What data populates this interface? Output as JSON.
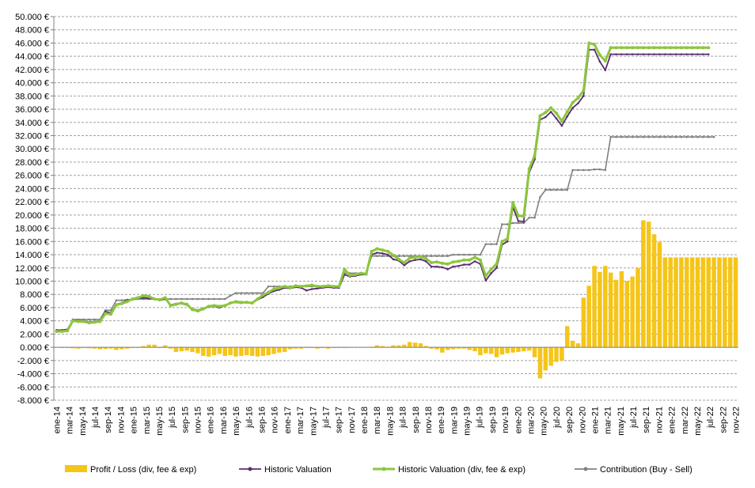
{
  "chart_data": {
    "type": "bar+line",
    "title": "",
    "xlabel": "",
    "ylabel": "",
    "ylim": [
      -8000,
      50000
    ],
    "y_tick_step": 2000,
    "y_tick_suffix": " €",
    "grid": true,
    "legend_position": "bottom",
    "x_tick_labels": [
      "ene-14",
      "mar-14",
      "may-14",
      "jul-14",
      "sep-14",
      "nov-14",
      "ene-15",
      "mar-15",
      "may-15",
      "jul-15",
      "sep-15",
      "nov-15",
      "ene-16",
      "mar-16",
      "may-16",
      "jul-16",
      "sep-16",
      "nov-16",
      "ene-17",
      "mar-17",
      "may-17",
      "jul-17",
      "sep-17",
      "nov-17",
      "ene-18",
      "mar-18",
      "may-18",
      "jul-18",
      "sep-18",
      "nov-18",
      "ene-19",
      "mar-19",
      "may-19",
      "jul-19",
      "sep-19",
      "nov-19",
      "ene-20",
      "mar-20",
      "may-20",
      "jul-20",
      "sep-20",
      "nov-20",
      "ene-21",
      "mar-21",
      "may-21",
      "jul-21",
      "sep-21",
      "nov-21",
      "ene-22",
      "mar-22",
      "may-22",
      "jul-22",
      "sep-22",
      "nov-22"
    ],
    "series": [
      {
        "name": "Profit / Loss (div, fee & exp)",
        "kind": "bar",
        "color": "#f5c518",
        "values": [
          0,
          -100,
          -100,
          -150,
          -200,
          -100,
          -150,
          -200,
          -300,
          -250,
          -200,
          -400,
          -300,
          -200,
          -100,
          -100,
          200,
          400,
          400,
          -100,
          300,
          -200,
          -700,
          -600,
          -500,
          -700,
          -900,
          -1300,
          -1400,
          -1200,
          -1000,
          -1300,
          -1200,
          -1400,
          -1300,
          -1200,
          -1300,
          -1400,
          -1300,
          -1200,
          -1000,
          -800,
          -700,
          -300,
          -200,
          -200,
          -100,
          -100,
          -200,
          -100,
          -200,
          -100,
          -100,
          -100,
          0,
          0,
          0,
          0,
          100,
          300,
          200,
          100,
          300,
          300,
          400,
          800,
          700,
          600,
          200,
          -200,
          -300,
          -800,
          -400,
          -300,
          -200,
          -200,
          -400,
          -600,
          -1200,
          -900,
          -1000,
          -1500,
          -1100,
          -900,
          -800,
          -700,
          -600,
          -500,
          -1500,
          -4700,
          -3500,
          -2800,
          -2200,
          -2000,
          3200,
          1000,
          600,
          7500,
          9300,
          12300,
          11400,
          12300,
          11300,
          10200,
          11500,
          10000,
          10700,
          12000,
          19200,
          19000,
          17100,
          15900,
          13600,
          13600,
          13600,
          13600,
          13600,
          13600,
          13600,
          13600,
          13600,
          13600,
          13600,
          13600,
          13600,
          13600
        ]
      },
      {
        "name": "Historic Valuation",
        "kind": "line",
        "color": "#5b2d6e",
        "values": [
          2600,
          2600,
          2700,
          4100,
          4000,
          4000,
          3800,
          3900,
          4000,
          5400,
          5200,
          6500,
          6700,
          7100,
          7300,
          7400,
          7500,
          7400,
          7300,
          7100,
          7300,
          6400,
          6600,
          6600,
          6400,
          5800,
          5600,
          5900,
          6100,
          6200,
          6000,
          6300,
          6700,
          6800,
          6700,
          6800,
          6700,
          7200,
          7600,
          8100,
          8500,
          8700,
          9000,
          8900,
          9100,
          9000,
          8600,
          8800,
          8900,
          9000,
          9100,
          9000,
          9000,
          11000,
          10700,
          10800,
          11000,
          11000,
          14000,
          14300,
          14200,
          14000,
          13300,
          13100,
          12400,
          13000,
          13200,
          13300,
          13000,
          12200,
          12200,
          12100,
          11800,
          12200,
          12300,
          12500,
          12500,
          13000,
          12600,
          10100,
          11200,
          12000,
          15500,
          16000,
          21200,
          19100,
          19000,
          26400,
          28400,
          34400,
          34800,
          35600,
          34600,
          33500,
          34900,
          36200,
          36900,
          38000,
          45000,
          45000,
          43200,
          41900,
          44300,
          44300,
          44300,
          44300,
          44300,
          44300,
          44300,
          44300,
          44300,
          44300,
          44300,
          44300,
          44300,
          44300,
          44300,
          44300,
          44300,
          44300,
          44300
        ]
      },
      {
        "name": "Historic Valuation  (div, fee & exp)",
        "kind": "line",
        "color": "#8cc63e",
        "values": [
          2400,
          2400,
          2500,
          4000,
          3900,
          3900,
          3700,
          3800,
          3900,
          5100,
          5000,
          6400,
          6600,
          6900,
          7300,
          7500,
          7800,
          7700,
          7300,
          7200,
          7500,
          6300,
          6500,
          6700,
          6500,
          5700,
          5500,
          5800,
          6200,
          6300,
          6200,
          6300,
          6700,
          6900,
          6800,
          6800,
          6700,
          7300,
          7900,
          8300,
          8800,
          9000,
          9200,
          9000,
          9300,
          9200,
          9300,
          9400,
          9200,
          9200,
          9300,
          9200,
          9200,
          11800,
          10900,
          11000,
          11200,
          11100,
          14500,
          14900,
          14700,
          14500,
          13900,
          13300,
          12800,
          13500,
          13600,
          13700,
          13400,
          12800,
          12900,
          12700,
          12600,
          12900,
          13000,
          13200,
          13200,
          13600,
          13200,
          10800,
          11800,
          12600,
          16000,
          16400,
          21900,
          19900,
          19800,
          27000,
          29000,
          35000,
          35500,
          36200,
          35400,
          34200,
          35600,
          37000,
          37700,
          38800,
          46000,
          45800,
          44200,
          43300,
          45300,
          45300,
          45300,
          45300,
          45300,
          45300,
          45300,
          45300,
          45300,
          45300,
          45300,
          45300,
          45300,
          45300,
          45300,
          45300,
          45300,
          45300,
          45300
        ]
      },
      {
        "name": "Contribution (Buy - Sell)",
        "kind": "line",
        "color": "#808080",
        "values": [
          2600,
          2600,
          2600,
          4200,
          4200,
          4200,
          4200,
          4200,
          4200,
          5600,
          5600,
          7100,
          7100,
          7200,
          7200,
          7300,
          7300,
          7300,
          7300,
          7300,
          7300,
          7300,
          7300,
          7300,
          7300,
          7300,
          7300,
          7300,
          7300,
          7300,
          7300,
          7300,
          7800,
          8200,
          8200,
          8200,
          8200,
          8200,
          8200,
          9200,
          9200,
          9200,
          9200,
          9200,
          9200,
          9200,
          9200,
          9200,
          9200,
          9200,
          9200,
          9200,
          9200,
          11200,
          11200,
          11200,
          11200,
          11200,
          13800,
          13800,
          13800,
          13800,
          13800,
          13800,
          13800,
          13800,
          13800,
          13800,
          13800,
          13800,
          13800,
          13800,
          13800,
          14000,
          14000,
          14000,
          14000,
          14000,
          14000,
          15600,
          15600,
          15600,
          18600,
          18600,
          18800,
          18800,
          18800,
          19600,
          19600,
          22700,
          23800,
          23800,
          23800,
          23800,
          23800,
          26800,
          26800,
          26800,
          26800,
          26900,
          26900,
          26800,
          31800,
          31800,
          31800,
          31800,
          31800,
          31800,
          31800,
          31800,
          31800,
          31800,
          31800,
          31800,
          31800,
          31800,
          31800,
          31800,
          31800,
          31800,
          31800,
          31800
        ]
      }
    ]
  }
}
